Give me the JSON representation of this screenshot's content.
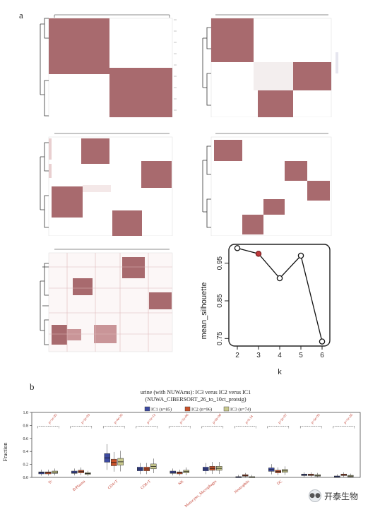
{
  "panel_a": {
    "label": "a"
  },
  "panel_b": {
    "label": "b"
  },
  "silhouette": {
    "ylabel": "mean_silhouette",
    "xlabel": "k",
    "k": [
      2,
      3,
      4,
      5,
      6
    ],
    "values": [
      0.99,
      0.975,
      0.91,
      0.97,
      0.742
    ],
    "highlight_k": 3,
    "yticks": [
      "0.75",
      "0.85",
      "0.95"
    ],
    "xticks": [
      "2",
      "3",
      "4",
      "5",
      "6"
    ]
  },
  "chart_data": {
    "type": "boxplot",
    "title": "urine (with NUWAms): IC3 verus IC2 verus IC1",
    "subtitle": "(NUWA_CIBERSORT_26_to_10ct_protsig)",
    "ylabel": "Fraction",
    "ylim": [
      0,
      1
    ],
    "yticks": [
      "0.0",
      "0.2",
      "0.4",
      "0.6",
      "0.8",
      "1.0"
    ],
    "legend": [
      {
        "name": "IC1 (n=85)",
        "color": "#3d4aa0"
      },
      {
        "name": "IC2 (n=96)",
        "color": "#c8522a"
      },
      {
        "name": "IC3 (n=74)",
        "color": "#c9c98e"
      }
    ],
    "categories": [
      "Tc",
      "B/Plasma",
      "CD4+T",
      "CD8+T",
      "NK",
      "Monocytes_Macrophages",
      "Neutrophils",
      "DC",
      "",
      ""
    ],
    "pvalues": [
      "p=1e-05",
      "p=2e-03",
      "p=4e-26",
      "p=1e-12",
      "p=5e-06",
      "p=6e-06",
      "p=0.14",
      "p=2e-07",
      "p=3e-03",
      "p=1e-26"
    ],
    "medians": [
      [
        0.07,
        0.07,
        0.08
      ],
      [
        0.08,
        0.09,
        0.06
      ],
      [
        0.3,
        0.23,
        0.24
      ],
      [
        0.13,
        0.13,
        0.17
      ],
      [
        0.08,
        0.07,
        0.09
      ],
      [
        0.13,
        0.14,
        0.14
      ],
      [
        0.0,
        0.03,
        0.0
      ],
      [
        0.12,
        0.09,
        0.1
      ],
      [
        0.04,
        0.04,
        0.03
      ],
      [
        0.01,
        0.04,
        0.02
      ]
    ]
  },
  "watermark": {
    "text": "开泰生物",
    "logo": "wechat-icon"
  }
}
